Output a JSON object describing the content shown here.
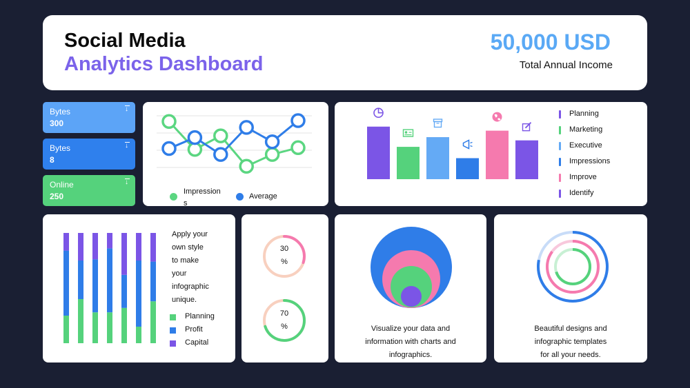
{
  "header": {
    "title_line1": "Social Media",
    "title_line2": "Analytics Dashboard",
    "income_value": "50,000 USD",
    "income_label": "Total Annual Income"
  },
  "stats": [
    {
      "label": "Bytes",
      "value": "300",
      "color": "#5ca4f7"
    },
    {
      "label": "Bytes",
      "value": "8",
      "color": "#2f80ed"
    },
    {
      "label": "Online",
      "value": "250",
      "color": "#55d27c"
    }
  ],
  "line_chart": {
    "legend": [
      {
        "label": "Impression\ns",
        "color": "#5bd681"
      },
      {
        "label": "Average",
        "color": "#2f7de8"
      }
    ],
    "series": [
      {
        "name": "Impressions",
        "color": "#5bd681",
        "values": [
          6.5,
          3.2,
          4.8,
          1.2,
          2.6,
          3.4
        ]
      },
      {
        "name": "Average",
        "color": "#2f7de8",
        "values": [
          3.3,
          4.6,
          2.6,
          5.8,
          4.1,
          6.6
        ]
      }
    ],
    "ylim": [
      0,
      7.5
    ]
  },
  "bar_chart": {
    "type": "bar",
    "values": [
      6.5,
      4.0,
      5.2,
      2.6,
      6.0,
      4.8
    ],
    "colors": [
      "#7b55e6",
      "#55d27c",
      "#64aaf5",
      "#2f7de8",
      "#f57aae",
      "#7b55e6"
    ],
    "icons": [
      "pie-chart-icon",
      "id-card-icon",
      "archive-box-icon",
      "megaphone-icon",
      "globe-icon",
      "edit-icon"
    ],
    "ylim": [
      0,
      7.5
    ],
    "legend": [
      {
        "label": "Planning",
        "color": "#7b55e6"
      },
      {
        "label": "Marketing",
        "color": "#55d27c"
      },
      {
        "label": "Executive",
        "color": "#64aaf5"
      },
      {
        "label": "Impressions",
        "color": "#2f7de8"
      },
      {
        "label": "Improve",
        "color": "#f57aae"
      },
      {
        "label": "Identify",
        "color": "#7b55e6"
      }
    ]
  },
  "stacked_chart": {
    "type": "bar",
    "series": [
      {
        "name": "Planning",
        "color": "#55d27c",
        "values": [
          25,
          40,
          28,
          28,
          32,
          15,
          38
        ]
      },
      {
        "name": "Profit",
        "color": "#2f7de8",
        "values": [
          59,
          35,
          48,
          58,
          30,
          60,
          36
        ]
      },
      {
        "name": "Capital",
        "color": "#7b55e6",
        "values": [
          16,
          25,
          24,
          14,
          38,
          25,
          26
        ]
      }
    ],
    "description_lines": [
      "Apply your",
      "own style",
      "to make",
      "your",
      "infographic",
      "unique."
    ],
    "legend": [
      {
        "label": "Planning",
        "color": "#55d27c"
      },
      {
        "label": "Profit",
        "color": "#2f7de8"
      },
      {
        "label": "Capital",
        "color": "#7b55e6"
      }
    ]
  },
  "donuts": [
    {
      "value": 30,
      "line1": "30",
      "line2": "%",
      "color": "#f57aae",
      "track": "#f8d0bf"
    },
    {
      "value": 70,
      "line1": "70",
      "line2": "%",
      "color": "#55d27c",
      "track": "#f8d0bf"
    }
  ],
  "nested_circles": {
    "colors": [
      "#2f7de8",
      "#f57aae",
      "#55d27c",
      "#7b55e6"
    ],
    "text_lines": [
      "Visualize your data and",
      "information with charts and",
      "infographics."
    ]
  },
  "rings": {
    "colors": [
      "#2f7de8",
      "#c8dcf8",
      "#f57aae",
      "#f8c8dc",
      "#55d27c",
      "#c8f0d4"
    ],
    "text_lines": [
      "Beautiful designs and",
      "infographic templates",
      "for all your needs."
    ]
  }
}
